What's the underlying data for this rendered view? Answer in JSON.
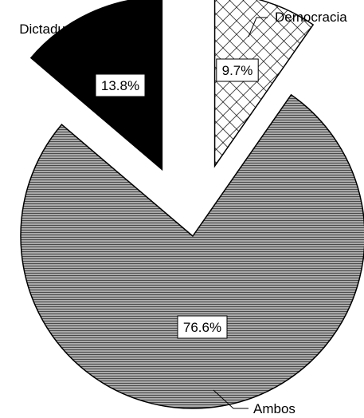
{
  "chart_data": {
    "type": "pie",
    "style": "exploded",
    "title": "",
    "slices": [
      {
        "label": "Democracia",
        "value": 9.7,
        "display": "9.7%",
        "fill": "crosshatch",
        "color": "#ffffff"
      },
      {
        "label": "Ambos",
        "value": 76.6,
        "display": "76.6%",
        "fill": "horizontal-lines",
        "color": "#8c8c8c"
      },
      {
        "label": "Dictadura",
        "value": 13.8,
        "display": "13.8%",
        "fill": "solid",
        "color": "#000000"
      }
    ],
    "start_angle": "12 o'clock",
    "direction": "clockwise",
    "legend": "none"
  }
}
